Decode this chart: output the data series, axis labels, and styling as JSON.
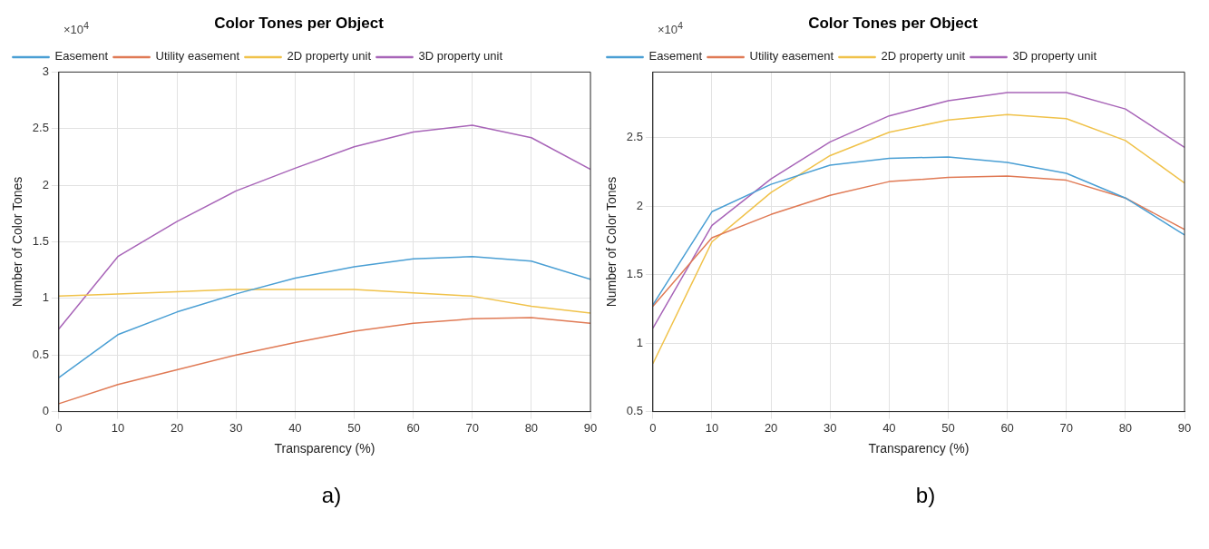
{
  "chart_data": [
    {
      "type": "line",
      "title": "Color Tones per Object",
      "xlabel": "Transparency (%)",
      "ylabel": "Number of Color Tones",
      "annotations": [
        "×10$^{4}$",
        "a)"
      ],
      "x": [
        0,
        10,
        20,
        30,
        40,
        50,
        60,
        70,
        80,
        90
      ],
      "xlim": [
        0,
        90
      ],
      "xticks": [
        0,
        10,
        20,
        30,
        40,
        50,
        60,
        70,
        80,
        90
      ],
      "ylim": [
        0,
        3
      ],
      "yticks": [
        0,
        0.5,
        1,
        1.5,
        2,
        2.5,
        3
      ],
      "grid": true,
      "legend": "top left",
      "marker": "none",
      "line_style": "solid",
      "series": [
        {
          "name": "Easement",
          "color": "#4a9fd4",
          "values": [
            0.3,
            0.68,
            0.88,
            1.04,
            1.18,
            1.28,
            1.35,
            1.37,
            1.33,
            1.17
          ]
        },
        {
          "name": "Utility easement",
          "color": "#e07a55",
          "values": [
            0.07,
            0.24,
            0.37,
            0.5,
            0.61,
            0.71,
            0.78,
            0.82,
            0.83,
            0.78
          ]
        },
        {
          "name": "2D property unit",
          "color": "#f0c24a",
          "values": [
            1.02,
            1.04,
            1.06,
            1.08,
            1.08,
            1.08,
            1.05,
            1.02,
            0.93,
            0.87
          ]
        },
        {
          "name": "3D property unit",
          "color": "#a865b8",
          "values": [
            0.73,
            1.37,
            1.68,
            1.95,
            2.15,
            2.34,
            2.47,
            2.53,
            2.42,
            2.14
          ]
        }
      ]
    },
    {
      "type": "line",
      "title": "Color Tones per Object",
      "xlabel": "Transparency (%)",
      "ylabel": "Number of Color Tones",
      "annotations": [
        "×10$^{4}$",
        "b)"
      ],
      "x": [
        0,
        10,
        20,
        30,
        40,
        50,
        60,
        70,
        80,
        90
      ],
      "xlim": [
        0,
        90
      ],
      "xticks": [
        0,
        10,
        20,
        30,
        40,
        50,
        60,
        70,
        80,
        90
      ],
      "ylim": [
        0.5,
        2.98
      ],
      "yticks": [
        0.5,
        1,
        1.5,
        2,
        2.5
      ],
      "grid": true,
      "legend": "top left",
      "marker": "none",
      "line_style": "solid",
      "series": [
        {
          "name": "Easement",
          "color": "#4a9fd4",
          "values": [
            1.28,
            1.96,
            2.16,
            2.3,
            2.35,
            2.36,
            2.32,
            2.24,
            2.06,
            1.79
          ]
        },
        {
          "name": "Utility easement",
          "color": "#e07a55",
          "values": [
            1.27,
            1.77,
            1.94,
            2.08,
            2.18,
            2.21,
            2.22,
            2.19,
            2.06,
            1.83
          ]
        },
        {
          "name": "2D property unit",
          "color": "#f0c24a",
          "values": [
            0.85,
            1.74,
            2.1,
            2.37,
            2.54,
            2.63,
            2.67,
            2.64,
            2.48,
            2.17
          ]
        },
        {
          "name": "3D property unit",
          "color": "#a865b8",
          "values": [
            1.11,
            1.86,
            2.2,
            2.47,
            2.66,
            2.77,
            2.83,
            2.83,
            2.71,
            2.43
          ]
        }
      ]
    }
  ]
}
